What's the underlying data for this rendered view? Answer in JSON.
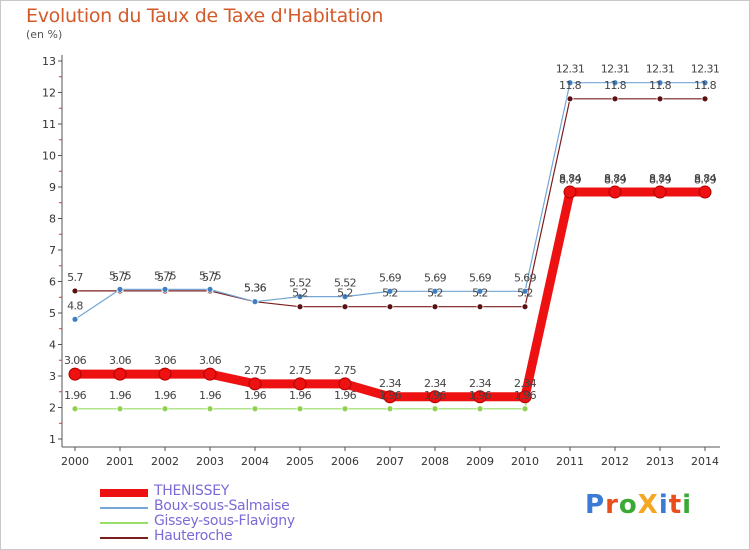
{
  "title": "Evolution du Taux de Taxe d'Habitation",
  "unit_label": "(en %)",
  "logo_text": "ProXiti",
  "logo_letters": [
    {
      "ch": "P",
      "color": "#3a7bd5"
    },
    {
      "ch": "r",
      "color": "#e94e1b"
    },
    {
      "ch": "o",
      "color": "#3aa935"
    },
    {
      "ch": "X",
      "color": "#f5a623"
    },
    {
      "ch": "i",
      "color": "#3a7bd5"
    },
    {
      "ch": "t",
      "color": "#e94e1b"
    },
    {
      "ch": "i",
      "color": "#3aa935"
    }
  ],
  "chart_data": {
    "type": "line",
    "title": "Evolution du Taux de Taxe d'Habitation",
    "ylabel": "(en %)",
    "x": [
      2000,
      2001,
      2002,
      2003,
      2004,
      2005,
      2006,
      2007,
      2008,
      2009,
      2010,
      2011,
      2012,
      2013,
      2014
    ],
    "ylim": [
      1,
      13
    ],
    "yticks": [
      1,
      2,
      3,
      4,
      5,
      6,
      7,
      8,
      9,
      10,
      11,
      12,
      13
    ],
    "grid": false,
    "legend_position": "bottom-left",
    "series": [
      {
        "name": "THENISSEY",
        "color": "#ee1111",
        "values": [
          3.06,
          3.06,
          3.06,
          3.06,
          2.75,
          2.75,
          2.75,
          2.34,
          2.34,
          2.34,
          2.34,
          8.84,
          8.84,
          8.84,
          8.84
        ],
        "labels": [
          "3.06",
          "3.06",
          "3.06",
          "3.06",
          "2.75",
          "2.75",
          "2.75",
          "2.34",
          "2.34",
          "2.34",
          "2.34",
          "8.84",
          "8.84",
          "8.84",
          "8.84"
        ]
      },
      {
        "name": "Boux-sous-Salmaise",
        "color": "#74a6d6",
        "values": [
          4.8,
          5.75,
          5.75,
          5.75,
          5.36,
          5.52,
          5.52,
          5.69,
          5.69,
          5.69,
          5.69,
          12.31,
          12.31,
          12.31,
          12.31
        ],
        "labels": [
          "4.8",
          "5.75",
          "5.75",
          "5.75",
          "5.36",
          "5.52",
          "5.52",
          "5.69",
          "5.69",
          "5.69",
          "5.69",
          "12.31",
          "12.31",
          "12.31",
          "12.31"
        ]
      },
      {
        "name": "Gissey-sous-Flavigny",
        "color": "#99dd66",
        "values": [
          1.96,
          1.96,
          1.96,
          1.96,
          1.96,
          1.96,
          1.96,
          1.96,
          1.96,
          1.96,
          1.96,
          8.79,
          8.79,
          8.79,
          8.79
        ],
        "labels": [
          "1.96",
          "1.96",
          "1.96",
          "1.96",
          "1.96",
          "1.96",
          "1.96",
          "1.96",
          "1.96",
          "1.96",
          "1.96",
          "8.79",
          "8.79",
          "8.79",
          "8.79"
        ]
      },
      {
        "name": "Hauteroche",
        "color": "#7a1e1e",
        "values": [
          5.7,
          5.7,
          5.7,
          5.7,
          5.36,
          5.2,
          5.2,
          5.2,
          5.2,
          5.2,
          5.2,
          11.8,
          11.8,
          11.8,
          11.8
        ],
        "labels": [
          "5.7",
          "5.7",
          "5.7",
          "5.7",
          "5.36",
          "5.2",
          "5.2",
          "5.2",
          "5.2",
          "5.2",
          "5.2",
          "11.8",
          "11.8",
          "11.8",
          "11.8"
        ]
      }
    ]
  }
}
